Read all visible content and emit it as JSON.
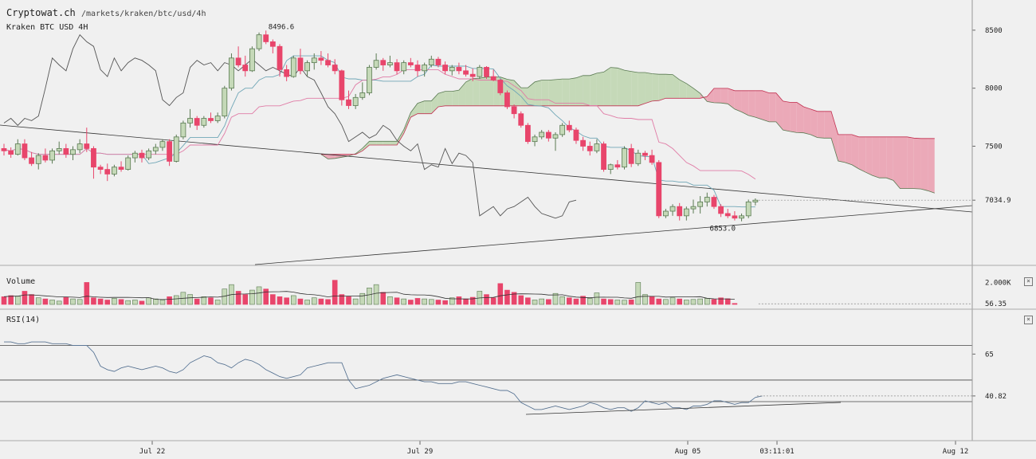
{
  "header": {
    "site": "Cryptowat.ch",
    "path": "/markets/kraken/btc/usd/4h",
    "subtitle": "Kraken BTC USD 4H"
  },
  "panels": {
    "volume": {
      "title": "Volume",
      "close": "×"
    },
    "rsi": {
      "title": "RSI(14)",
      "close": "×"
    }
  },
  "colors": {
    "up": "#c5d9b8",
    "up_border": "#5a7a52",
    "down": "#e8456b",
    "cloud_bull": "#c5d9b8",
    "cloud_bear": "#eba9b8",
    "tenkan": "#6fa6b6",
    "kijun": "#e07ca6",
    "chikou": "#555555",
    "rsi": "#6b8fb8"
  },
  "chart_data": [
    {
      "type": "candlestick",
      "title": "Kraken BTC USD 4H",
      "y_ticks": [
        8500,
        8000,
        7500,
        7034.9
      ],
      "ylim": [
        6480,
        8760
      ],
      "x_ticks": [
        "Jul 22",
        "Jul 29",
        "Aug 05",
        "03:11:01",
        "Aug 12"
      ],
      "annotations": {
        "high": "8496.6",
        "low": "6853.0",
        "last": "7034.9"
      },
      "candles": [
        [
          7480,
          7520,
          7420,
          7460
        ],
        [
          7460,
          7490,
          7400,
          7430
        ],
        [
          7430,
          7560,
          7420,
          7520
        ],
        [
          7520,
          7560,
          7380,
          7400
        ],
        [
          7400,
          7450,
          7330,
          7350
        ],
        [
          7350,
          7440,
          7300,
          7420
        ],
        [
          7420,
          7480,
          7360,
          7380
        ],
        [
          7380,
          7480,
          7350,
          7460
        ],
        [
          7460,
          7540,
          7430,
          7480
        ],
        [
          7480,
          7520,
          7400,
          7430
        ],
        [
          7430,
          7500,
          7380,
          7470
        ],
        [
          7470,
          7560,
          7440,
          7520
        ],
        [
          7520,
          7660,
          7450,
          7480
        ],
        [
          7480,
          7500,
          7220,
          7320
        ],
        [
          7320,
          7340,
          7260,
          7300
        ],
        [
          7300,
          7350,
          7200,
          7260
        ],
        [
          7260,
          7340,
          7240,
          7320
        ],
        [
          7320,
          7370,
          7280,
          7300
        ],
        [
          7300,
          7420,
          7290,
          7400
        ],
        [
          7400,
          7460,
          7360,
          7440
        ],
        [
          7440,
          7470,
          7360,
          7400
        ],
        [
          7400,
          7480,
          7380,
          7460
        ],
        [
          7460,
          7520,
          7430,
          7490
        ],
        [
          7490,
          7560,
          7460,
          7540
        ],
        [
          7540,
          7560,
          7330,
          7370
        ],
        [
          7370,
          7600,
          7360,
          7580
        ],
        [
          7580,
          7720,
          7560,
          7700
        ],
        [
          7700,
          7820,
          7660,
          7740
        ],
        [
          7740,
          7760,
          7640,
          7680
        ],
        [
          7680,
          7760,
          7660,
          7740
        ],
        [
          7740,
          7790,
          7700,
          7720
        ],
        [
          7720,
          7790,
          7700,
          7760
        ],
        [
          7760,
          8020,
          7740,
          8000
        ],
        [
          8000,
          8300,
          7980,
          8260
        ],
        [
          8260,
          8360,
          8180,
          8200
        ],
        [
          8200,
          8280,
          8100,
          8150
        ],
        [
          8150,
          8360,
          8140,
          8340
        ],
        [
          8340,
          8480,
          8320,
          8460
        ],
        [
          8460,
          8496.6,
          8380,
          8400
        ],
        [
          8400,
          8420,
          8300,
          8360
        ],
        [
          8360,
          8380,
          8100,
          8160
        ],
        [
          8160,
          8200,
          8060,
          8100
        ],
        [
          8100,
          8280,
          8090,
          8260
        ],
        [
          8260,
          8340,
          8120,
          8150
        ],
        [
          8150,
          8240,
          8100,
          8220
        ],
        [
          8220,
          8300,
          8160,
          8260
        ],
        [
          8260,
          8320,
          8200,
          8240
        ],
        [
          8240,
          8300,
          8180,
          8200
        ],
        [
          8200,
          8250,
          8120,
          8150
        ],
        [
          8150,
          8160,
          7850,
          7900
        ],
        [
          7900,
          7980,
          7820,
          7850
        ],
        [
          7850,
          7950,
          7820,
          7920
        ],
        [
          7920,
          8050,
          7900,
          7960
        ],
        [
          7960,
          8200,
          7940,
          8180
        ],
        [
          8180,
          8300,
          8160,
          8240
        ],
        [
          8240,
          8260,
          8150,
          8200
        ],
        [
          8200,
          8280,
          8180,
          8220
        ],
        [
          8220,
          8250,
          8120,
          8150
        ],
        [
          8150,
          8240,
          8120,
          8220
        ],
        [
          8220,
          8260,
          8180,
          8200
        ],
        [
          8200,
          8240,
          8100,
          8150
        ],
        [
          8150,
          8220,
          8100,
          8200
        ],
        [
          8200,
          8280,
          8180,
          8250
        ],
        [
          8250,
          8270,
          8180,
          8200
        ],
        [
          8200,
          8230,
          8120,
          8150
        ],
        [
          8150,
          8200,
          8110,
          8180
        ],
        [
          8180,
          8220,
          8120,
          8150
        ],
        [
          8150,
          8200,
          8100,
          8120
        ],
        [
          8120,
          8170,
          8060,
          8100
        ],
        [
          8100,
          8200,
          8080,
          8180
        ],
        [
          8180,
          8190,
          8080,
          8100
        ],
        [
          8100,
          8160,
          8060,
          8070
        ],
        [
          8070,
          8080,
          7940,
          7960
        ],
        [
          7960,
          7980,
          7820,
          7840
        ],
        [
          7840,
          7860,
          7740,
          7780
        ],
        [
          7780,
          7800,
          7660,
          7680
        ],
        [
          7680,
          7700,
          7520,
          7540
        ],
        [
          7540,
          7600,
          7500,
          7580
        ],
        [
          7580,
          7640,
          7560,
          7620
        ],
        [
          7620,
          7640,
          7540,
          7570
        ],
        [
          7570,
          7620,
          7460,
          7600
        ],
        [
          7600,
          7700,
          7580,
          7680
        ],
        [
          7680,
          7720,
          7620,
          7640
        ],
        [
          7640,
          7660,
          7520,
          7550
        ],
        [
          7550,
          7580,
          7460,
          7500
        ],
        [
          7500,
          7540,
          7420,
          7460
        ],
        [
          7460,
          7560,
          7440,
          7520
        ],
        [
          7520,
          7540,
          7280,
          7300
        ],
        [
          7300,
          7350,
          7260,
          7340
        ],
        [
          7340,
          7380,
          7300,
          7320
        ],
        [
          7320,
          7500,
          7300,
          7480
        ],
        [
          7480,
          7520,
          7320,
          7350
        ],
        [
          7350,
          7470,
          7330,
          7440
        ],
        [
          7440,
          7460,
          7380,
          7420
        ],
        [
          7420,
          7470,
          7340,
          7360
        ],
        [
          7360,
          7380,
          6880,
          6900
        ],
        [
          6900,
          6960,
          6880,
          6940
        ],
        [
          6940,
          7000,
          6900,
          6980
        ],
        [
          6980,
          7010,
          6860,
          6900
        ],
        [
          6900,
          6980,
          6860,
          6960
        ],
        [
          6960,
          7040,
          6920,
          6980
        ],
        [
          6980,
          7070,
          6920,
          7020
        ],
        [
          7020,
          7100,
          6980,
          7060
        ],
        [
          7060,
          7080,
          6960,
          6980
        ],
        [
          6980,
          7000,
          6890,
          6920
        ],
        [
          6920,
          6960,
          6880,
          6900
        ],
        [
          6900,
          6940,
          6860,
          6880
        ],
        [
          6880,
          6920,
          6853,
          6900
        ],
        [
          6900,
          7040,
          6880,
          7020
        ],
        [
          7020,
          7050,
          6990,
          7034.9
        ]
      ]
    },
    {
      "type": "bar",
      "title": "Volume",
      "y_ticks": [
        "2.000K",
        "56.35"
      ],
      "ylim": [
        0,
        2900
      ],
      "values": [
        700,
        800,
        750,
        1200,
        900,
        600,
        500,
        400,
        300,
        650,
        500,
        450,
        2000,
        600,
        500,
        400,
        550,
        450,
        350,
        400,
        300,
        600,
        500,
        400,
        700,
        800,
        1100,
        900,
        500,
        700,
        600,
        400,
        1400,
        1800,
        1200,
        900,
        1300,
        1600,
        1400,
        900,
        700,
        600,
        800,
        500,
        400,
        600,
        500,
        450,
        2200,
        900,
        700,
        500,
        1000,
        1500,
        1800,
        1100,
        700,
        600,
        500,
        400,
        550,
        500,
        450,
        400,
        350,
        600,
        700,
        500,
        650,
        1200,
        900,
        600,
        1900,
        1300,
        1100,
        800,
        600,
        400,
        500,
        450,
        1000,
        700,
        600,
        500,
        750,
        550,
        1050,
        500,
        450,
        400,
        380,
        420,
        2000,
        900,
        700,
        500,
        450,
        600,
        500,
        400,
        450,
        500,
        550,
        450,
        600,
        520,
        90
      ],
      "directions": [
        "d",
        "d",
        "u",
        "d",
        "d",
        "u",
        "d",
        "u",
        "u",
        "d",
        "u",
        "u",
        "d",
        "d",
        "d",
        "d",
        "u",
        "d",
        "u",
        "u",
        "d",
        "u",
        "u",
        "u",
        "d",
        "u",
        "u",
        "u",
        "d",
        "u",
        "d",
        "u",
        "u",
        "u",
        "d",
        "d",
        "u",
        "u",
        "d",
        "d",
        "d",
        "d",
        "u",
        "d",
        "u",
        "u",
        "d",
        "d",
        "d",
        "d",
        "d",
        "u",
        "u",
        "u",
        "u",
        "d",
        "u",
        "d",
        "u",
        "d",
        "d",
        "u",
        "u",
        "d",
        "d",
        "u",
        "d",
        "d",
        "d",
        "u",
        "d",
        "d",
        "d",
        "d",
        "d",
        "d",
        "d",
        "u",
        "u",
        "d",
        "u",
        "u",
        "d",
        "d",
        "d",
        "u",
        "u",
        "d",
        "d",
        "u",
        "u",
        "d",
        "u",
        "u",
        "d",
        "d",
        "u",
        "u",
        "d",
        "u",
        "u",
        "u",
        "u",
        "d",
        "d",
        "d",
        "d",
        "u",
        "u"
      ]
    },
    {
      "type": "line",
      "title": "RSI(14)",
      "y_ticks": [
        65,
        40.82
      ],
      "ylim": [
        15,
        90
      ],
      "values": [
        72,
        72,
        71,
        71,
        72,
        72,
        72,
        71,
        71,
        71,
        70,
        70,
        70,
        66,
        58,
        56,
        55,
        57,
        58,
        57,
        56,
        57,
        58,
        57,
        55,
        54,
        56,
        60,
        62,
        64,
        63,
        60,
        59,
        57,
        60,
        62,
        61,
        59,
        56,
        54,
        52,
        51,
        52,
        53,
        57,
        58,
        59,
        60,
        60,
        60,
        50,
        45,
        46,
        47,
        49,
        51,
        52,
        53,
        52,
        51,
        50,
        49,
        49,
        48,
        48,
        48,
        49,
        49,
        48,
        47,
        46,
        45,
        44,
        44,
        42,
        37,
        35,
        33,
        33,
        34,
        35,
        34,
        33,
        34,
        35,
        37,
        36,
        34,
        33,
        34,
        34,
        32,
        34,
        38,
        37,
        36,
        37,
        34,
        34,
        33,
        35,
        35,
        36,
        38,
        38,
        37,
        36,
        37,
        37,
        40,
        40.82
      ]
    }
  ]
}
